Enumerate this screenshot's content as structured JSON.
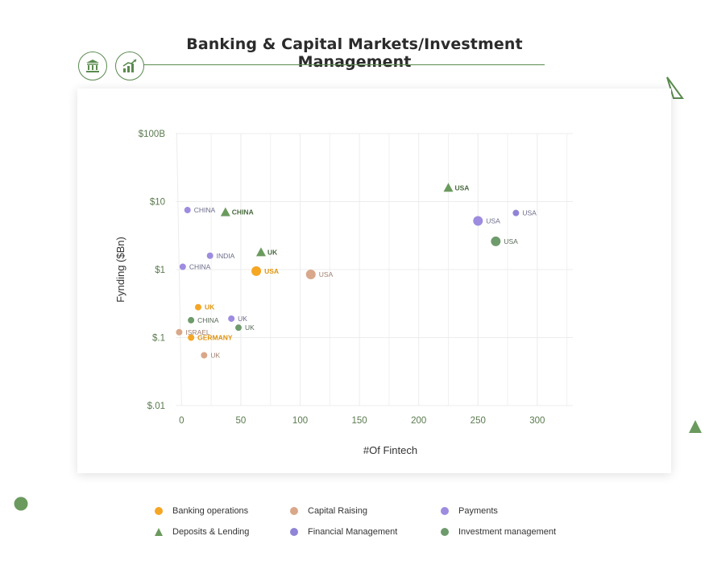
{
  "header": {
    "title": "Banking & Capital Markets/Investment Management",
    "icons": [
      "bank-icon",
      "growth-chart-icon"
    ]
  },
  "colors": {
    "accent": "#5a8a4e",
    "banking_operations": "#f5a623",
    "capital_raising": "#d9a789",
    "payments": "#9d8ce0",
    "deposits_lending": "#6b9a5e",
    "financial_management": "#8f84d6",
    "investment_management": "#6e9b6c"
  },
  "chart_data": {
    "type": "scatter",
    "title": "",
    "xlabel": "#Of Fintech",
    "ylabel": "Fynding ($Bn)",
    "xlim": [
      -5,
      330
    ],
    "ylim": [
      0.01,
      100
    ],
    "yscale": "log",
    "x_ticks": [
      "0",
      "50",
      "100",
      "150",
      "200",
      "250",
      "300"
    ],
    "x_tick_values": [
      0,
      50,
      100,
      150,
      200,
      250,
      300
    ],
    "y_ticks": [
      "$100B",
      "$10",
      "$1",
      "$.1",
      "$.01"
    ],
    "y_tick_values": [
      100,
      10,
      1,
      0.1,
      0.01
    ],
    "grid": true,
    "legend_position": "bottom",
    "series": [
      {
        "name": "Banking operations",
        "marker": "circle",
        "color": "#f5a623",
        "points": [
          {
            "x": 63,
            "y": 0.95,
            "label": "USA",
            "big": true
          },
          {
            "x": 14,
            "y": 0.28,
            "label": "UK"
          },
          {
            "x": 8,
            "y": 0.1,
            "label": "GERMANY"
          }
        ]
      },
      {
        "name": "Capital Raising",
        "marker": "circle",
        "color": "#d9a789",
        "points": [
          {
            "x": 109,
            "y": 0.85,
            "label": "USA",
            "big": true
          },
          {
            "x": -2,
            "y": 0.12,
            "label": "ISRAEL"
          },
          {
            "x": 19,
            "y": 0.055,
            "label": "UK"
          }
        ]
      },
      {
        "name": "Payments",
        "marker": "circle",
        "color": "#9d8ce0",
        "points": [
          {
            "x": 5,
            "y": 7.5,
            "label": "CHINA"
          },
          {
            "x": 24,
            "y": 1.6,
            "label": "INDIA"
          },
          {
            "x": 1,
            "y": 1.1,
            "label": "CHINA"
          },
          {
            "x": 42,
            "y": 0.19,
            "label": "UK"
          },
          {
            "x": 250,
            "y": 5.2,
            "label": "USA",
            "big": true
          }
        ]
      },
      {
        "name": "Deposits & Lending",
        "marker": "triangle",
        "color": "#6b9a5e",
        "points": [
          {
            "x": 225,
            "y": 16,
            "label": "USA"
          },
          {
            "x": 37,
            "y": 7,
            "label": "CHINA"
          },
          {
            "x": 67,
            "y": 1.8,
            "label": "UK"
          }
        ]
      },
      {
        "name": "Financial Management",
        "marker": "circle",
        "color": "#8f84d6",
        "points": [
          {
            "x": 282,
            "y": 6.8,
            "label": "USA"
          }
        ]
      },
      {
        "name": "Investment management",
        "marker": "circle",
        "color": "#6e9b6c",
        "points": [
          {
            "x": 265,
            "y": 2.6,
            "label": "USA",
            "big": true
          },
          {
            "x": 8,
            "y": 0.18,
            "label": "CHINA"
          },
          {
            "x": 48,
            "y": 0.14,
            "label": "UK"
          }
        ]
      }
    ]
  },
  "legend": {
    "items": [
      {
        "label": "Banking operations",
        "marker": "circle",
        "color": "#f5a623"
      },
      {
        "label": "Capital Raising",
        "marker": "circle",
        "color": "#d9a789"
      },
      {
        "label": "Payments",
        "marker": "circle",
        "color": "#9d8ce0"
      },
      {
        "label": "Deposits & Lending",
        "marker": "triangle",
        "color": "#6b9a5e"
      },
      {
        "label": "Financial Management",
        "marker": "circle",
        "color": "#8f84d6"
      },
      {
        "label": "Investment management",
        "marker": "circle",
        "color": "#6e9b6c"
      }
    ]
  }
}
